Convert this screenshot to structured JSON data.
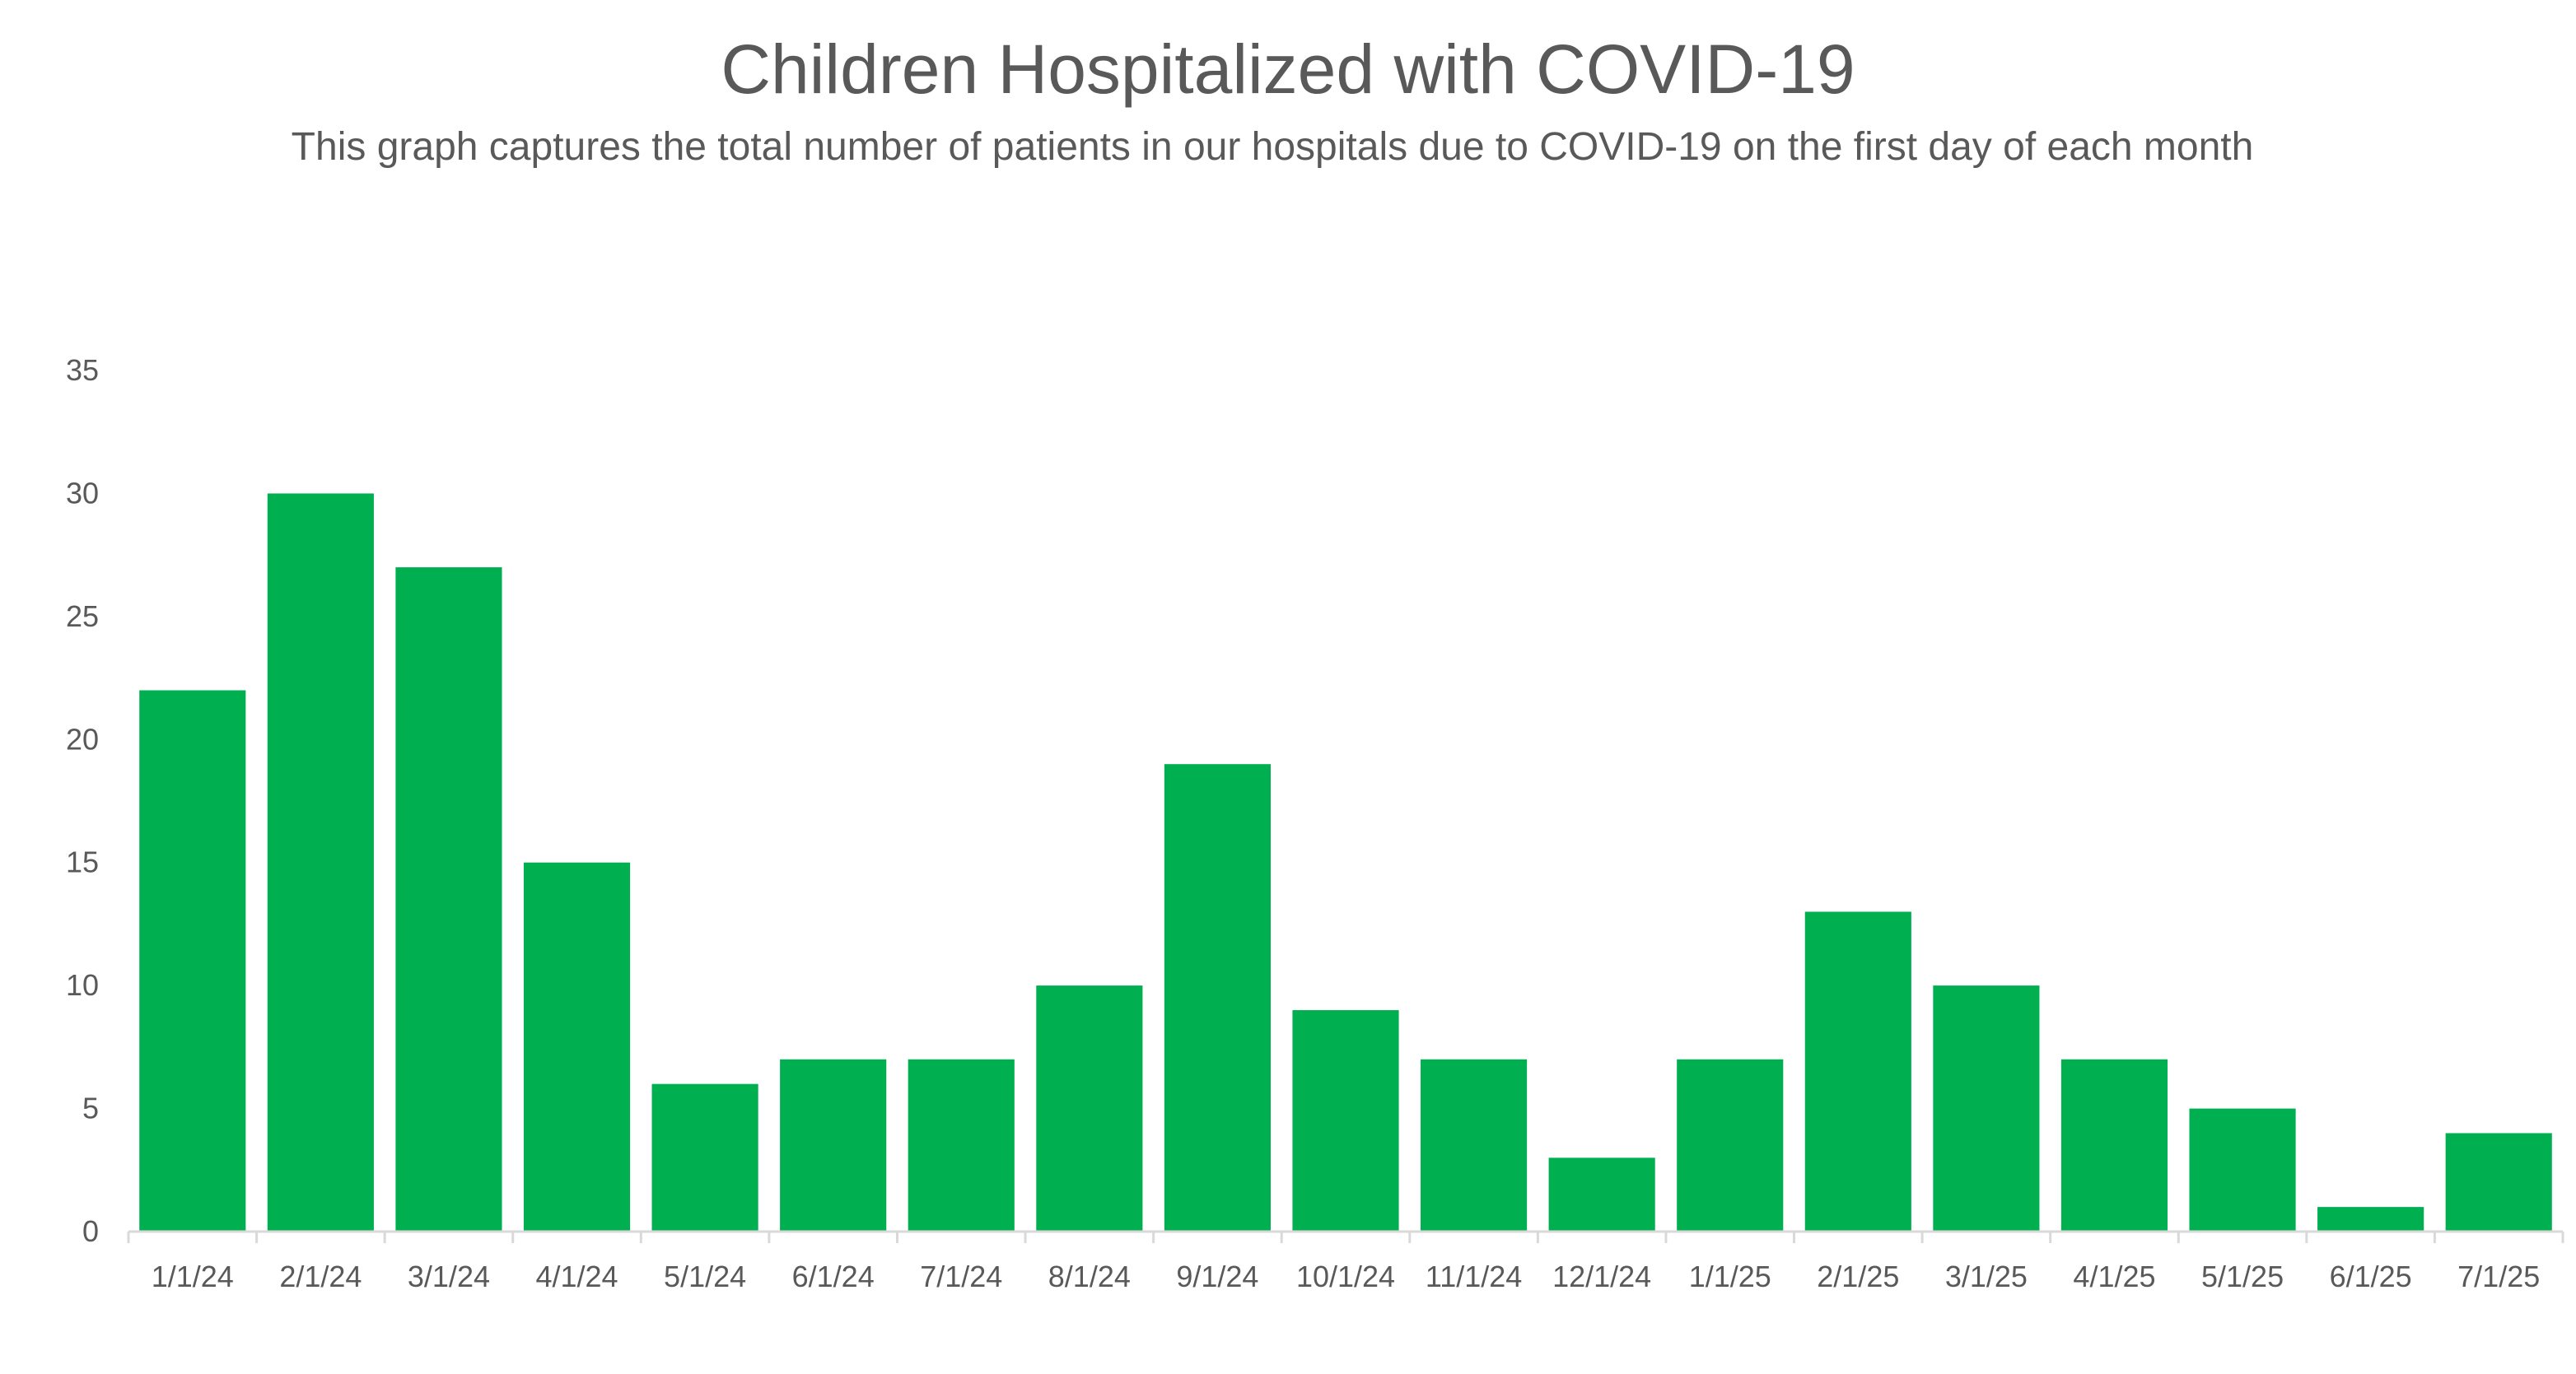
{
  "chart_data": {
    "type": "bar",
    "title": "Children Hospitalized with COVID-19",
    "subtitle": "This graph captures the total number of patients in our hospitals due to COVID-19 on the first day of each month",
    "xlabel": "",
    "ylabel": "",
    "categories": [
      "1/1/24",
      "2/1/24",
      "3/1/24",
      "4/1/24",
      "5/1/24",
      "6/1/24",
      "7/1/24",
      "8/1/24",
      "9/1/24",
      "10/1/24",
      "11/1/24",
      "12/1/24",
      "1/1/25",
      "2/1/25",
      "3/1/25",
      "4/1/25",
      "5/1/25",
      "6/1/25",
      "7/1/25"
    ],
    "values": [
      22,
      30,
      27,
      15,
      6,
      7,
      7,
      10,
      19,
      9,
      7,
      3,
      7,
      13,
      10,
      7,
      5,
      1,
      4
    ],
    "ylim": [
      0,
      35
    ],
    "yticks": [
      0,
      5,
      10,
      15,
      20,
      25,
      30,
      35
    ],
    "grid": false,
    "legend": "none",
    "bar_color": "#00B050",
    "axis_color": "#D9D9D9",
    "text_color": "#595959"
  }
}
